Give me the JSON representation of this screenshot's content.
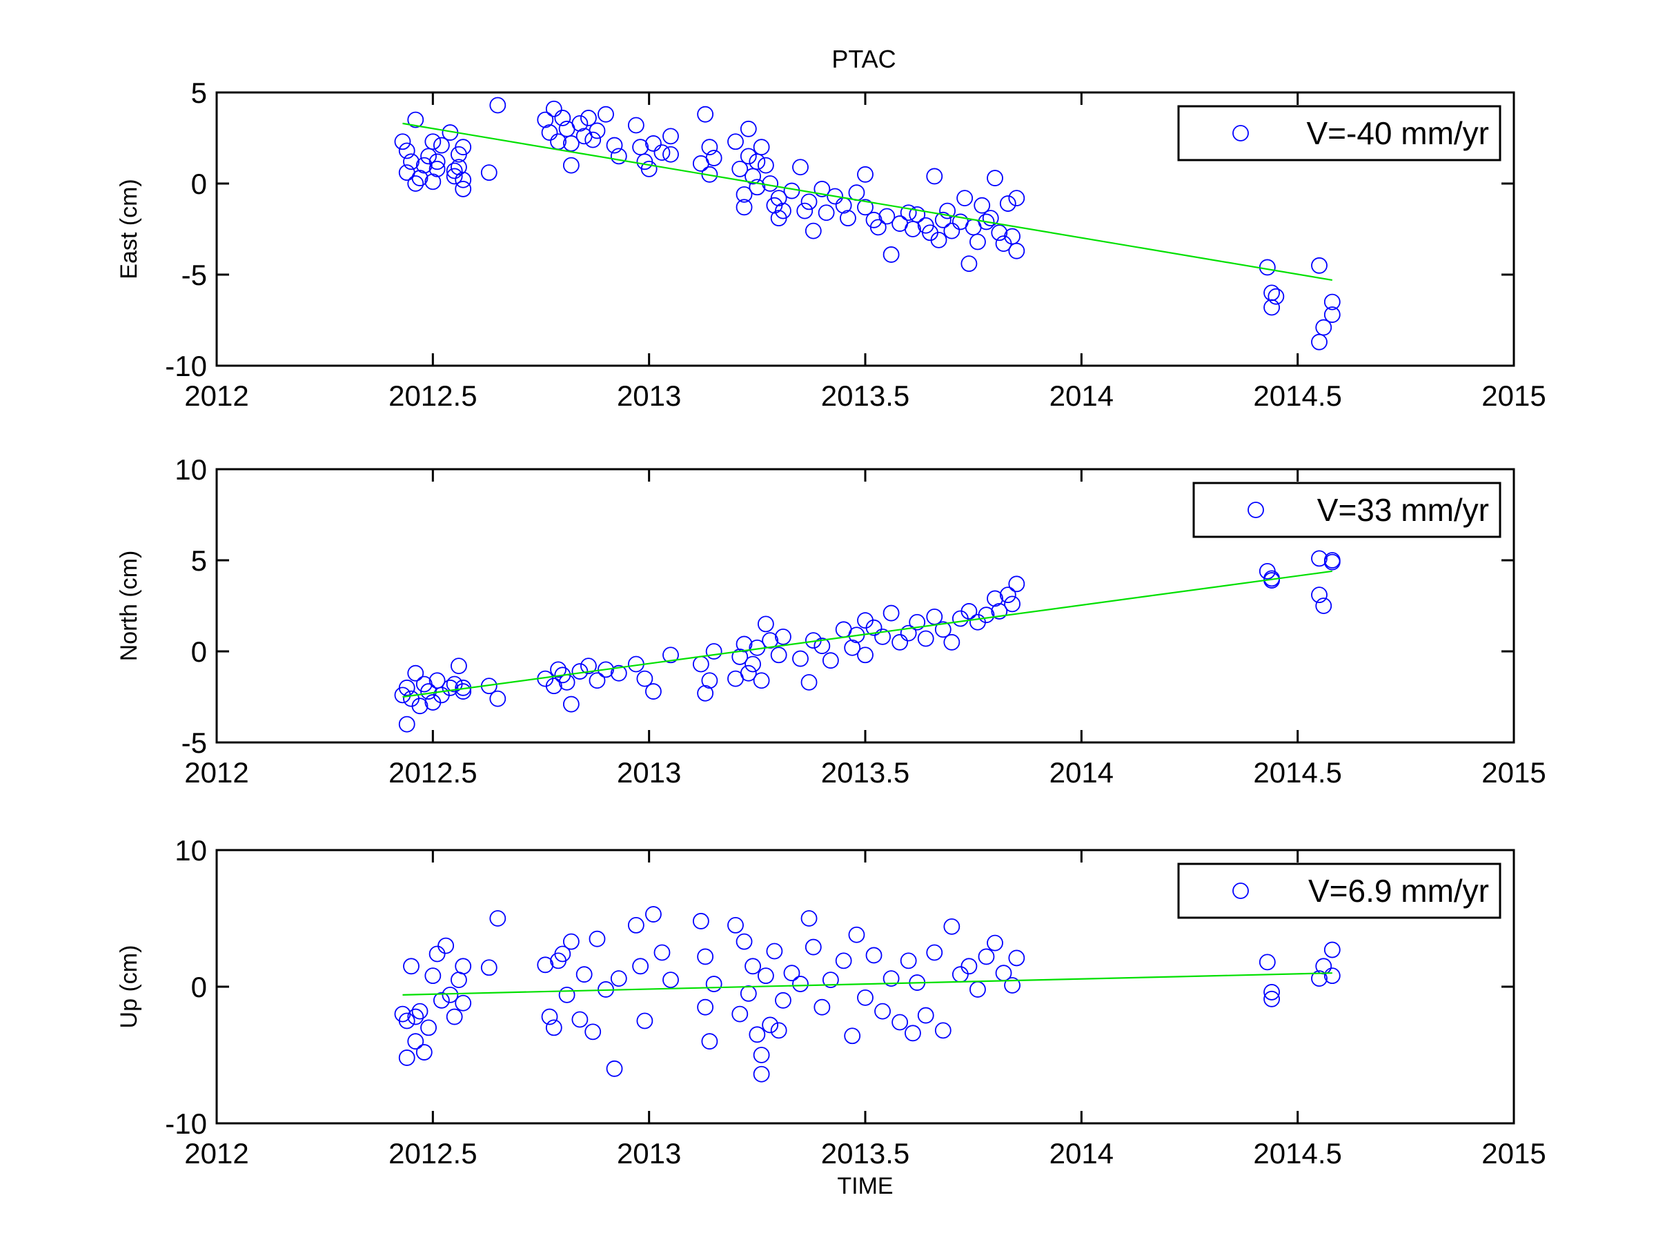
{
  "chart_data": [
    {
      "type": "scatter",
      "title": "PTAC",
      "xlabel": "",
      "ylabel": "East (cm)",
      "xlim": [
        2012,
        2015
      ],
      "ylim": [
        -10,
        5
      ],
      "x_ticks": [
        "2012",
        "2012.5",
        "2013",
        "2013.5",
        "2014",
        "2014.5",
        "2015"
      ],
      "y_ticks": [
        "-10",
        "-5",
        "0",
        "5"
      ],
      "legend": {
        "label": "V=-40 mm/yr",
        "position": "top-right"
      },
      "colors": {
        "points": "#0000ff",
        "trend": "#00e000"
      },
      "trend": {
        "x": [
          2012.43,
          2014.58
        ],
        "y": [
          3.3,
          -5.3
        ]
      },
      "series": [
        {
          "name": "V=-40 mm/yr",
          "x": [
            2012.43,
            2012.44,
            2012.44,
            2012.45,
            2012.46,
            2012.46,
            2012.47,
            2012.48,
            2012.49,
            2012.5,
            2012.5,
            2012.51,
            2012.51,
            2012.52,
            2012.54,
            2012.55,
            2012.55,
            2012.56,
            2012.56,
            2012.57,
            2012.57,
            2012.57,
            2012.63,
            2012.65,
            2012.76,
            2012.77,
            2012.78,
            2012.79,
            2012.8,
            2012.81,
            2012.82,
            2012.82,
            2012.84,
            2012.85,
            2012.86,
            2012.87,
            2012.88,
            2012.9,
            2012.92,
            2012.93,
            2012.97,
            2012.98,
            2012.99,
            2013.0,
            2013.01,
            2013.03,
            2013.05,
            2013.05,
            2013.12,
            2013.13,
            2013.14,
            2013.14,
            2013.15,
            2013.2,
            2013.21,
            2013.22,
            2013.22,
            2013.23,
            2013.23,
            2013.24,
            2013.25,
            2013.25,
            2013.26,
            2013.27,
            2013.28,
            2013.29,
            2013.3,
            2013.3,
            2013.31,
            2013.33,
            2013.35,
            2013.36,
            2013.37,
            2013.38,
            2013.4,
            2013.41,
            2013.43,
            2013.45,
            2013.46,
            2013.48,
            2013.5,
            2013.5,
            2013.52,
            2013.53,
            2013.55,
            2013.56,
            2013.58,
            2013.6,
            2013.61,
            2013.62,
            2013.64,
            2013.65,
            2013.66,
            2013.67,
            2013.68,
            2013.69,
            2013.7,
            2013.72,
            2013.73,
            2013.74,
            2013.75,
            2013.76,
            2013.77,
            2013.78,
            2013.79,
            2013.8,
            2013.81,
            2013.82,
            2013.83,
            2013.84,
            2013.85,
            2013.85,
            2014.43,
            2014.44,
            2014.44,
            2014.45,
            2014.55,
            2014.55,
            2014.56,
            2014.58,
            2014.58
          ],
          "y": [
            2.3,
            1.8,
            0.6,
            1.2,
            3.5,
            0.0,
            0.3,
            1.0,
            1.5,
            2.3,
            0.1,
            1.2,
            0.8,
            2.1,
            2.8,
            0.7,
            0.4,
            1.6,
            0.9,
            0.2,
            -0.3,
            2.0,
            0.6,
            4.3,
            3.5,
            2.8,
            4.1,
            2.3,
            3.6,
            3.0,
            2.2,
            1.0,
            3.3,
            2.6,
            3.6,
            2.4,
            2.9,
            3.8,
            2.1,
            1.5,
            3.2,
            2.0,
            1.2,
            0.8,
            2.2,
            1.7,
            1.6,
            2.6,
            1.1,
            3.8,
            2.0,
            0.5,
            1.4,
            2.3,
            0.8,
            -0.6,
            -1.3,
            3.0,
            1.5,
            0.4,
            1.2,
            -0.2,
            2.0,
            1.0,
            0.0,
            -1.2,
            -0.8,
            -1.9,
            -1.5,
            -0.4,
            0.9,
            -1.5,
            -1.0,
            -2.6,
            -0.3,
            -1.6,
            -0.7,
            -1.2,
            -1.9,
            -0.5,
            -1.3,
            0.5,
            -2.0,
            -2.4,
            -1.8,
            -3.9,
            -2.2,
            -1.6,
            -2.5,
            -1.7,
            -2.3,
            -2.7,
            0.4,
            -3.1,
            -2.0,
            -1.5,
            -2.6,
            -2.1,
            -0.8,
            -4.4,
            -2.4,
            -3.2,
            -1.2,
            -2.1,
            -1.9,
            0.3,
            -2.7,
            -3.3,
            -1.1,
            -2.9,
            -3.7,
            -0.8,
            -4.6,
            -6.0,
            -6.8,
            -6.2,
            -4.5,
            -8.7,
            -7.9,
            -7.2,
            -6.5
          ]
        }
      ]
    },
    {
      "type": "scatter",
      "title": "",
      "xlabel": "",
      "ylabel": "North (cm)",
      "xlim": [
        2012,
        2015
      ],
      "ylim": [
        -5,
        10
      ],
      "x_ticks": [
        "2012",
        "2012.5",
        "2013",
        "2013.5",
        "2014",
        "2014.5",
        "2015"
      ],
      "y_ticks": [
        "-5",
        "0",
        "5",
        "10"
      ],
      "legend": {
        "label": "V=33 mm/yr",
        "position": "top-right"
      },
      "colors": {
        "points": "#0000ff",
        "trend": "#00e000"
      },
      "trend": {
        "x": [
          2012.43,
          2014.58
        ],
        "y": [
          -2.5,
          4.4
        ]
      },
      "series": [
        {
          "name": "V=33 mm/yr",
          "x": [
            2012.43,
            2012.44,
            2012.44,
            2012.45,
            2012.46,
            2012.47,
            2012.48,
            2012.49,
            2012.5,
            2012.51,
            2012.52,
            2012.54,
            2012.55,
            2012.56,
            2012.57,
            2012.57,
            2012.63,
            2012.65,
            2012.76,
            2012.78,
            2012.79,
            2012.8,
            2012.81,
            2012.82,
            2012.84,
            2012.86,
            2012.88,
            2012.9,
            2012.93,
            2012.97,
            2012.99,
            2013.01,
            2013.05,
            2013.12,
            2013.13,
            2013.14,
            2013.15,
            2013.2,
            2013.21,
            2013.22,
            2013.23,
            2013.24,
            2013.25,
            2013.26,
            2013.27,
            2013.28,
            2013.3,
            2013.31,
            2013.35,
            2013.37,
            2013.38,
            2013.4,
            2013.42,
            2013.45,
            2013.47,
            2013.48,
            2013.5,
            2013.5,
            2013.52,
            2013.54,
            2013.56,
            2013.58,
            2013.6,
            2013.62,
            2013.64,
            2013.66,
            2013.68,
            2013.7,
            2013.72,
            2013.74,
            2013.76,
            2013.78,
            2013.8,
            2013.81,
            2013.83,
            2013.84,
            2013.85,
            2014.43,
            2014.44,
            2014.44,
            2014.55,
            2014.55,
            2014.56,
            2014.58,
            2014.58
          ],
          "y": [
            -2.4,
            -2.0,
            -4.0,
            -2.6,
            -1.2,
            -3.0,
            -1.8,
            -2.2,
            -2.8,
            -1.6,
            -2.4,
            -2.0,
            -1.8,
            -0.8,
            -2.2,
            -2.0,
            -1.9,
            -2.6,
            -1.5,
            -1.9,
            -1.0,
            -1.3,
            -1.7,
            -2.9,
            -1.1,
            -0.8,
            -1.6,
            -1.0,
            -1.2,
            -0.7,
            -1.5,
            -2.2,
            -0.2,
            -0.7,
            -2.3,
            -1.6,
            0.0,
            -1.5,
            -0.3,
            0.4,
            -1.2,
            -0.7,
            0.2,
            -1.6,
            1.5,
            0.6,
            -0.2,
            0.8,
            -0.4,
            -1.7,
            0.6,
            0.3,
            -0.5,
            1.2,
            0.2,
            0.9,
            1.7,
            -0.2,
            1.3,
            0.8,
            2.1,
            0.5,
            1.0,
            1.6,
            0.7,
            1.9,
            1.2,
            0.5,
            1.8,
            2.2,
            1.6,
            2.0,
            2.9,
            2.2,
            3.1,
            2.6,
            3.7,
            4.4,
            3.9,
            4.0,
            5.1,
            3.1,
            2.5,
            5.0,
            4.9
          ]
        }
      ]
    },
    {
      "type": "scatter",
      "title": "",
      "xlabel": "TIME",
      "ylabel": "Up (cm)",
      "xlim": [
        2012,
        2015
      ],
      "ylim": [
        -10,
        10
      ],
      "x_ticks": [
        "2012",
        "2012.5",
        "2013",
        "2013.5",
        "2014",
        "2014.5",
        "2015"
      ],
      "y_ticks": [
        "-10",
        "0",
        "10"
      ],
      "legend": {
        "label": "V=6.9 mm/yr",
        "position": "top-right"
      },
      "colors": {
        "points": "#0000ff",
        "trend": "#00e000"
      },
      "trend": {
        "x": [
          2012.43,
          2014.58
        ],
        "y": [
          -0.6,
          1.0
        ]
      },
      "series": [
        {
          "name": "V=6.9 mm/yr",
          "x": [
            2012.43,
            2012.44,
            2012.44,
            2012.45,
            2012.46,
            2012.46,
            2012.47,
            2012.48,
            2012.49,
            2012.5,
            2012.51,
            2012.52,
            2012.53,
            2012.54,
            2012.55,
            2012.56,
            2012.57,
            2012.57,
            2012.63,
            2012.65,
            2012.76,
            2012.77,
            2012.78,
            2012.79,
            2012.8,
            2012.81,
            2012.82,
            2012.84,
            2012.85,
            2012.87,
            2012.88,
            2012.9,
            2012.92,
            2012.93,
            2012.97,
            2012.98,
            2012.99,
            2013.01,
            2013.03,
            2013.05,
            2013.12,
            2013.13,
            2013.13,
            2013.14,
            2013.15,
            2013.2,
            2013.21,
            2013.22,
            2013.23,
            2013.24,
            2013.25,
            2013.26,
            2013.26,
            2013.27,
            2013.28,
            2013.29,
            2013.3,
            2013.31,
            2013.33,
            2013.35,
            2013.37,
            2013.38,
            2013.4,
            2013.42,
            2013.45,
            2013.47,
            2013.48,
            2013.5,
            2013.52,
            2013.54,
            2013.56,
            2013.58,
            2013.6,
            2013.61,
            2013.62,
            2013.64,
            2013.66,
            2013.68,
            2013.7,
            2013.72,
            2013.74,
            2013.76,
            2013.78,
            2013.8,
            2013.82,
            2013.84,
            2013.85,
            2014.43,
            2014.44,
            2014.44,
            2014.55,
            2014.56,
            2014.58,
            2014.58
          ],
          "y": [
            -2.0,
            -5.2,
            -2.5,
            1.5,
            -4.0,
            -2.2,
            -1.8,
            -4.8,
            -3.0,
            0.8,
            2.4,
            -1.0,
            3.0,
            -0.6,
            -2.2,
            0.5,
            1.5,
            -1.2,
            1.4,
            5.0,
            1.6,
            -2.2,
            -3.0,
            1.9,
            2.4,
            -0.6,
            3.3,
            -2.4,
            0.9,
            -3.3,
            3.5,
            -0.2,
            -6.0,
            0.6,
            4.5,
            1.5,
            -2.5,
            5.3,
            2.5,
            0.5,
            4.8,
            2.2,
            -1.5,
            -4.0,
            0.2,
            4.5,
            -2.0,
            3.3,
            -0.5,
            1.5,
            -3.5,
            -5.0,
            -6.4,
            0.8,
            -2.8,
            2.6,
            -3.2,
            -1.0,
            1.0,
            0.2,
            5.0,
            2.9,
            -1.5,
            0.5,
            1.9,
            -3.6,
            3.8,
            -0.8,
            2.3,
            -1.8,
            0.6,
            -2.6,
            1.9,
            -3.4,
            0.3,
            -2.1,
            2.5,
            -3.2,
            4.4,
            0.9,
            1.5,
            -0.2,
            2.2,
            3.2,
            1.0,
            0.1,
            2.1,
            1.8,
            -0.4,
            -0.9,
            0.6,
            1.5,
            0.8,
            2.7
          ]
        }
      ]
    }
  ]
}
